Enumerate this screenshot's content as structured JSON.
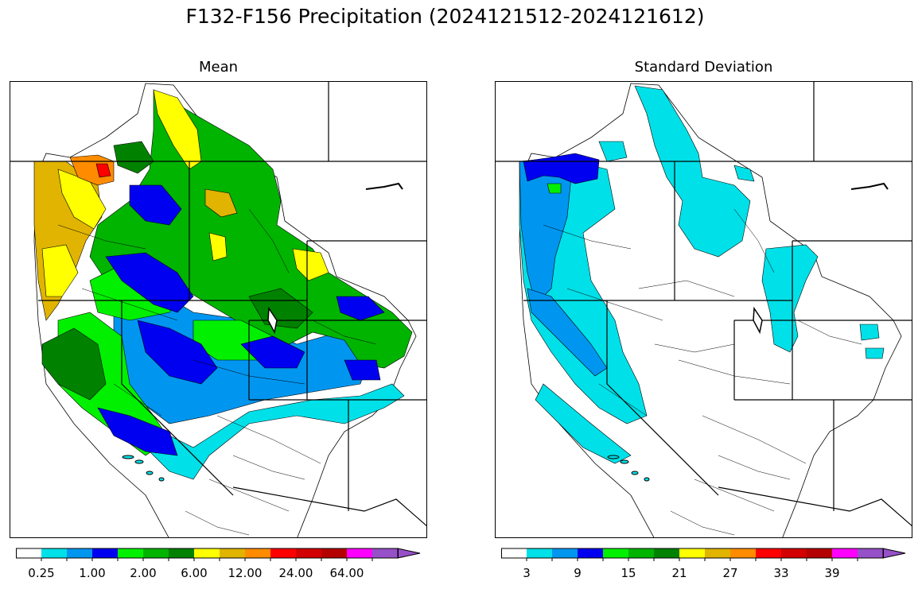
{
  "figure": {
    "title": "F132-F156 Precipitation (2024121512-2024121612)"
  },
  "panels": [
    {
      "title": "Mean",
      "colorbar": {
        "colors": [
          "#ffffff",
          "#00e0e8",
          "#0096f0",
          "#0000f0",
          "#00f000",
          "#00b400",
          "#008200",
          "#ffff00",
          "#e0b400",
          "#ff8c00",
          "#ff0000",
          "#d20000",
          "#b40000",
          "#ff00ff",
          "#9650c8"
        ],
        "tick_labels": [
          "0.25",
          "1.00",
          "2.00",
          "6.00",
          "12.00",
          "24.00",
          "64.00"
        ],
        "extend": "max"
      }
    },
    {
      "title": "Standard Deviation",
      "colorbar": {
        "colors": [
          "#ffffff",
          "#00e0e8",
          "#0096f0",
          "#0000f0",
          "#00f000",
          "#00b400",
          "#008200",
          "#ffff00",
          "#e0b400",
          "#ff8c00",
          "#ff0000",
          "#d20000",
          "#b40000",
          "#ff00ff",
          "#9650c8"
        ],
        "tick_labels": [
          "3",
          "9",
          "15",
          "21",
          "27",
          "33",
          "39"
        ],
        "extend": "max"
      }
    }
  ]
}
